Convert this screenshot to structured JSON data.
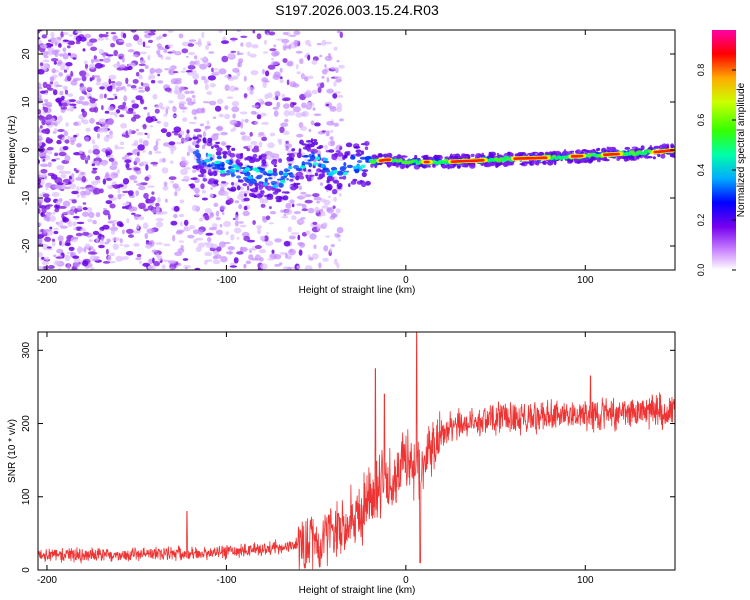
{
  "figure": {
    "title": "S197.2026.003.15.24.R03"
  },
  "chart_data": [
    {
      "type": "heatmap",
      "name": "spectrogram",
      "xlabel": "Height of straight line (km)",
      "ylabel": "Frequency (Hz)",
      "xlim": [
        -205,
        150
      ],
      "ylim": [
        -25,
        25
      ],
      "x_ticks": [
        -200,
        -100,
        0,
        100
      ],
      "x_tick_labels": [
        "-200",
        "-100",
        "0",
        "100"
      ],
      "y_ticks": [
        -20,
        -10,
        0,
        10,
        20
      ],
      "y_tick_labels": [
        "-20",
        "-10",
        "0",
        "10",
        "20"
      ],
      "colorbar": {
        "label": "Normalized spectral amplitude",
        "range": [
          0,
          0.96
        ],
        "ticks": [
          0.0,
          0.2,
          0.4,
          0.6,
          0.8
        ],
        "tick_labels": [
          "0.0",
          "0.2",
          "0.4",
          "0.6",
          "0.8"
        ],
        "colormap": [
          "#ffffff",
          "#cc44ff",
          "#5500ee",
          "#0000ff",
          "#00ccff",
          "#00ff66",
          "#99ff00",
          "#ffff00",
          "#ff8800",
          "#ff0000",
          "#ff00aa"
        ]
      },
      "ridge": {
        "description": "main frequency trace",
        "x": [
          -115,
          -100,
          -90,
          -80,
          -70,
          -60,
          -50,
          -40,
          -30,
          -20,
          -10,
          0,
          20,
          40,
          60,
          80,
          100,
          120,
          140,
          150
        ],
        "y": [
          -1.5,
          -3.5,
          -5.0,
          -5.5,
          -6.5,
          -3.0,
          -1.5,
          -4.5,
          -3.0,
          -2.5,
          -2.0,
          -2.5,
          -2.5,
          -2.2,
          -1.8,
          -1.6,
          -1.2,
          -0.8,
          -0.4,
          0
        ]
      }
    },
    {
      "type": "line",
      "name": "snr",
      "xlabel": "Height of straight line (km)",
      "ylabel": "SNR (10 * v/v)",
      "xlim": [
        -205,
        150
      ],
      "ylim": [
        0,
        325
      ],
      "x_ticks": [
        -200,
        -100,
        0,
        100
      ],
      "x_tick_labels": [
        "-200",
        "-100",
        "0",
        "100"
      ],
      "y_ticks": [
        0,
        100,
        200,
        300
      ],
      "y_tick_labels": [
        "0",
        "100",
        "200",
        "300"
      ],
      "color": "#ee3333",
      "envelope": {
        "x": [
          -205,
          -120,
          -80,
          -60,
          -45,
          -35,
          -25,
          -15,
          -5,
          0,
          5,
          8,
          10,
          15,
          20,
          30,
          40,
          60,
          80,
          100,
          120,
          150
        ],
        "y": [
          20,
          22,
          28,
          35,
          45,
          60,
          80,
          110,
          135,
          150,
          140,
          130,
          150,
          170,
          185,
          200,
          205,
          208,
          210,
          212,
          214,
          218
        ]
      },
      "spikes": [
        {
          "x": -122,
          "y": 80
        },
        {
          "x": -17,
          "y": 275
        },
        {
          "x": -12,
          "y": 240
        },
        {
          "x": 6,
          "y": 325
        },
        {
          "x": 8,
          "y": 10
        },
        {
          "x": 103,
          "y": 265
        }
      ]
    }
  ]
}
